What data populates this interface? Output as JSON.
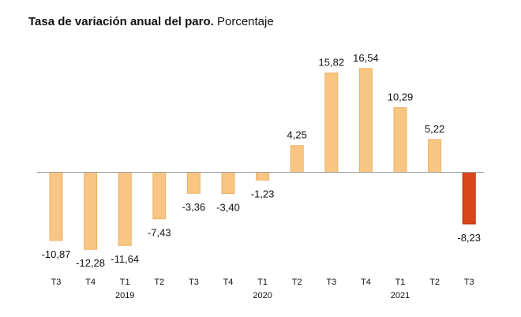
{
  "chart_data": {
    "type": "bar",
    "title": "Tasa de variación anual del paro.",
    "subtitle": "Porcentaje",
    "xlabel": "",
    "ylabel": "",
    "ylim": [
      -14,
      18
    ],
    "grid": false,
    "categories": [
      "T3",
      "T4",
      "T1",
      "T2",
      "T3",
      "T4",
      "T1",
      "T2",
      "T3",
      "T4",
      "T1",
      "T2",
      "T3"
    ],
    "years": [
      {
        "label": "2019",
        "index": 2
      },
      {
        "label": "2020",
        "index": 6
      },
      {
        "label": "2021",
        "index": 10
      }
    ],
    "values": [
      -10.87,
      -12.28,
      -11.64,
      -7.43,
      -3.36,
      -3.4,
      -1.23,
      4.25,
      15.82,
      16.54,
      10.29,
      5.22,
      -8.23
    ],
    "value_labels": [
      "-10,87",
      "-12,28",
      "-11,64",
      "-7,43",
      "-3,36",
      "-3,40",
      "-1,23",
      "4,25",
      "15,82",
      "16,54",
      "10,29",
      "5,22",
      "-8,23"
    ],
    "highlight_index": 12,
    "colors": {
      "bar": "#f8c682",
      "bar_stroke": "#eeb062",
      "highlight": "#d9461a",
      "highlight_stroke": "#b5330f",
      "axis": "#9e9e9e"
    }
  }
}
